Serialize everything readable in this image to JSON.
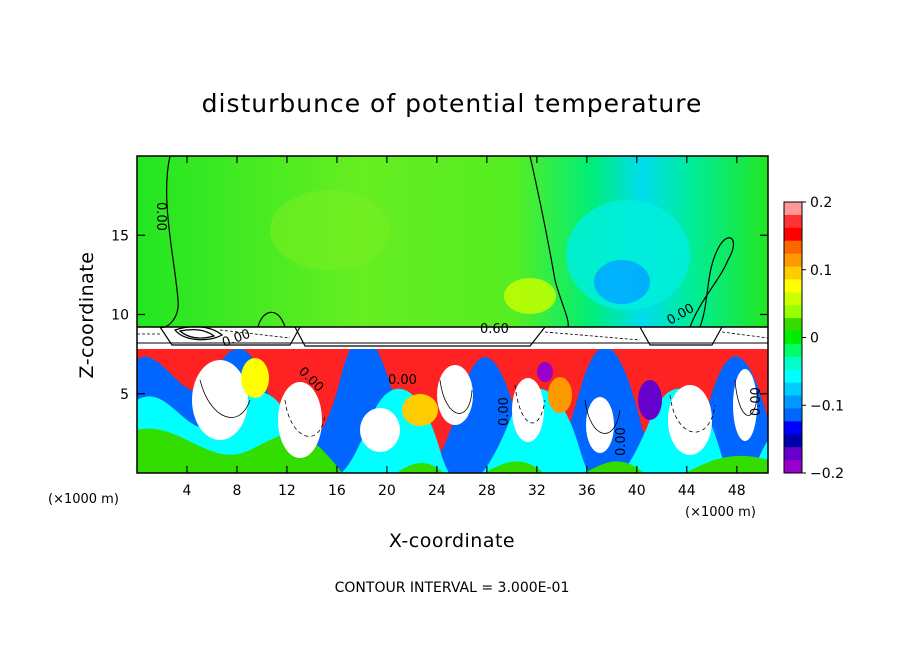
{
  "chart_data": {
    "type": "heatmap",
    "title": "disturbunce of potential temperature",
    "xlabel": "X-coordinate",
    "ylabel": "Z-coordinate",
    "x_unit_left": "(×1000 m)",
    "x_unit_right": "(×1000 m)",
    "xlim": [
      0,
      50.5
    ],
    "ylim": [
      0,
      20
    ],
    "x_ticks": [
      4,
      8,
      12,
      16,
      20,
      24,
      28,
      32,
      36,
      40,
      44,
      48
    ],
    "x_tick_labels": [
      "4",
      "8",
      "12",
      "16",
      "20",
      "24",
      "28",
      "32",
      "36",
      "40",
      "44",
      "48"
    ],
    "y_ticks": [
      5,
      10,
      15
    ],
    "y_tick_labels": [
      "5",
      "10",
      "15"
    ],
    "colorbar": {
      "min": -0.2,
      "max": 0.2,
      "tick_values": [
        0.2,
        0.1,
        0,
        -0.1,
        -0.2
      ],
      "tick_labels": [
        "0.2",
        "0.1",
        "0",
        "−0.1",
        "−0.2"
      ],
      "levels": [
        "#ff9999",
        "#ff3333",
        "#ff0000",
        "#ff6600",
        "#ff9900",
        "#ffcc00",
        "#ffff00",
        "#ccff00",
        "#99ff00",
        "#33dd00",
        "#00ee00",
        "#00ff66",
        "#00ffcc",
        "#00ffff",
        "#00ccff",
        "#0099ff",
        "#0066ff",
        "#0000ff",
        "#0000aa",
        "#6600cc",
        "#9900cc"
      ]
    },
    "contour_labels": [
      "0.00",
      "0.60",
      "0.00",
      "0.00",
      "0.00",
      "0.00",
      "0.00",
      "0.00",
      "0.00"
    ],
    "contour_interval_text": "CONTOUR INTERVAL = 3.000E-01"
  },
  "colors": {
    "upper_green": "#33ee33",
    "background": "#ffffff"
  }
}
